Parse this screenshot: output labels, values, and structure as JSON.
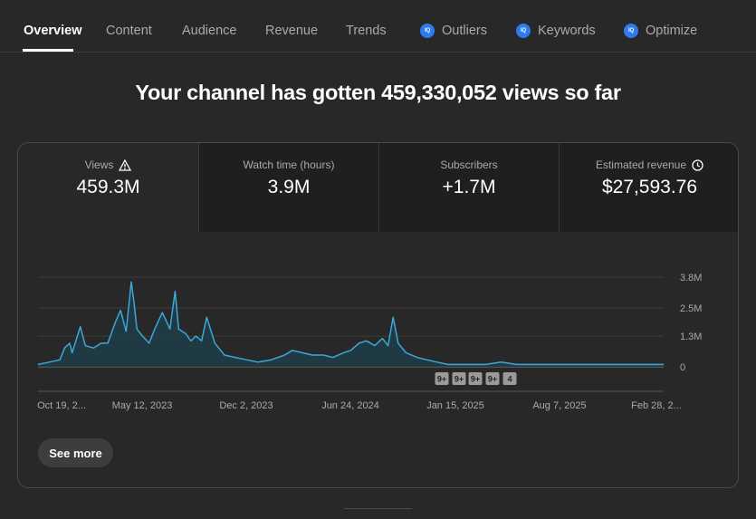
{
  "tabs": [
    {
      "label": "Overview",
      "active": true,
      "badge": false
    },
    {
      "label": "Content",
      "active": false,
      "badge": false
    },
    {
      "label": "Audience",
      "active": false,
      "badge": false
    },
    {
      "label": "Revenue",
      "active": false,
      "badge": false
    },
    {
      "label": "Trends",
      "active": false,
      "badge": false
    },
    {
      "label": "Outliers",
      "active": false,
      "badge": true
    },
    {
      "label": "Keywords",
      "active": false,
      "badge": true
    },
    {
      "label": "Optimize",
      "active": false,
      "badge": true
    }
  ],
  "badge_text": "IQ",
  "headline": "Your channel has gotten 459,330,052 views so far",
  "metrics": [
    {
      "label": "Views",
      "value": "459.3M",
      "icon": "warning-icon",
      "selected": true
    },
    {
      "label": "Watch time (hours)",
      "value": "3.9M",
      "icon": "",
      "selected": false
    },
    {
      "label": "Subscribers",
      "value": "+1.7M",
      "icon": "",
      "selected": false
    },
    {
      "label": "Estimated revenue",
      "value": "$27,593.76",
      "icon": "clock-icon",
      "selected": false
    }
  ],
  "see_more_label": "See more",
  "colors": {
    "accent": "#3ea6d6",
    "badge": "#2e7bf0",
    "background": "#282828"
  },
  "chart_data": {
    "type": "area",
    "x_tick_labels": [
      "Oct 19, 2...",
      "May 12, 2023",
      "Dec 2, 2023",
      "Jun 24, 2024",
      "Jan 15, 2025",
      "Aug 7, 2025",
      "Feb 28, 2..."
    ],
    "y_tick_labels": [
      "3.8M",
      "2.5M",
      "1.3M",
      "0"
    ],
    "ylim": [
      0,
      3.8
    ],
    "y_unit": "M views",
    "grid": true,
    "x": [
      "2022-10-19",
      "2022-11-10",
      "2022-12-01",
      "2022-12-10",
      "2022-12-20",
      "2022-12-25",
      "2023-01-10",
      "2023-01-20",
      "2023-02-05",
      "2023-02-20",
      "2023-03-05",
      "2023-03-20",
      "2023-03-30",
      "2023-04-10",
      "2023-04-20",
      "2023-04-25",
      "2023-05-01",
      "2023-05-12",
      "2023-05-25",
      "2023-06-05",
      "2023-06-20",
      "2023-07-05",
      "2023-07-15",
      "2023-07-22",
      "2023-08-05",
      "2023-08-15",
      "2023-08-25",
      "2023-09-05",
      "2023-09-15",
      "2023-10-01",
      "2023-10-20",
      "2023-11-10",
      "2023-12-02",
      "2023-12-25",
      "2024-01-20",
      "2024-02-15",
      "2024-03-01",
      "2024-03-20",
      "2024-04-10",
      "2024-05-01",
      "2024-05-20",
      "2024-06-10",
      "2024-06-24",
      "2024-07-10",
      "2024-07-25",
      "2024-08-10",
      "2024-08-25",
      "2024-09-05",
      "2024-09-15",
      "2024-09-25",
      "2024-10-10",
      "2024-11-01",
      "2024-11-20",
      "2024-12-10",
      "2025-01-01",
      "2025-01-15",
      "2025-02-15",
      "2025-03-15",
      "2025-04-15",
      "2025-05-15",
      "2025-06-15",
      "2025-07-15",
      "2025-08-07",
      "2025-09-15",
      "2025-10-15",
      "2025-11-15",
      "2025-12-15",
      "2026-01-15",
      "2026-02-28"
    ],
    "y": [
      0.1,
      0.2,
      0.3,
      0.8,
      1.0,
      0.6,
      1.7,
      0.9,
      0.8,
      1.0,
      1.0,
      1.9,
      2.4,
      1.5,
      3.6,
      2.8,
      1.6,
      1.3,
      1.0,
      1.6,
      2.3,
      1.6,
      3.2,
      1.6,
      1.4,
      1.1,
      1.3,
      1.1,
      2.1,
      1.0,
      0.5,
      0.4,
      0.3,
      0.2,
      0.3,
      0.5,
      0.7,
      0.6,
      0.5,
      0.5,
      0.4,
      0.6,
      0.7,
      1.0,
      1.1,
      0.9,
      1.2,
      0.9,
      2.1,
      1.0,
      0.6,
      0.4,
      0.3,
      0.2,
      0.1,
      0.1,
      0.1,
      0.1,
      0.2,
      0.1,
      0.1,
      0.1,
      0.1,
      0.1,
      0.1,
      0.1,
      0.1,
      0.1,
      0.1
    ]
  },
  "annotation_markers": [
    "9+",
    "9+",
    "9+",
    "9+",
    "4"
  ]
}
